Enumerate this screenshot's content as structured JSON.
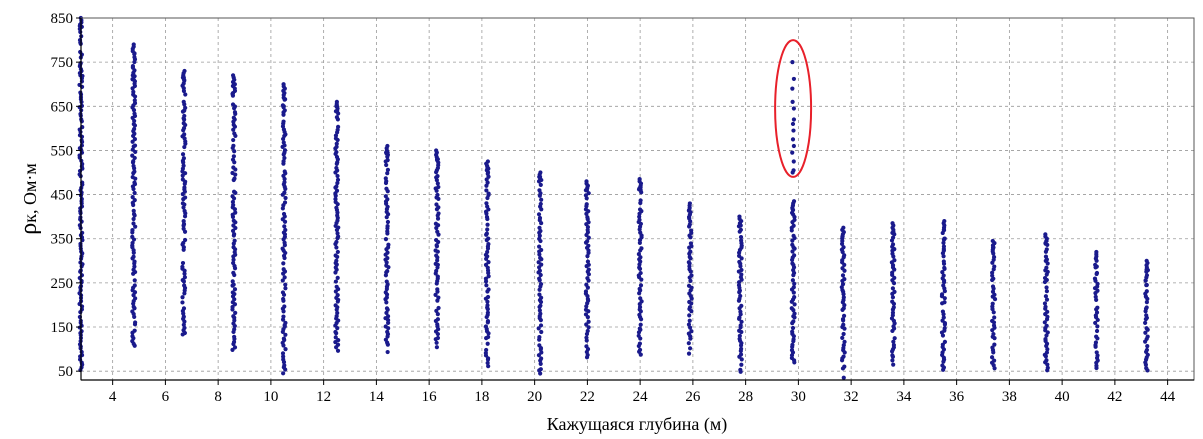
{
  "chart_data": {
    "type": "scatter",
    "title": "",
    "xlabel": "Кажущаяся глубина (м)",
    "ylabel": {
      "symbol": "ρ",
      "subscript": "к",
      "unit": ", Ом·м"
    },
    "xlim": [
      2.8,
      45
    ],
    "ylim": [
      30,
      850
    ],
    "xticks": [
      "4",
      "6",
      "8",
      "10",
      "12",
      "14",
      "16",
      "18",
      "20",
      "22",
      "24",
      "26",
      "28",
      "30",
      "32",
      "34",
      "36",
      "38",
      "40",
      "42",
      "44"
    ],
    "yticks": [
      "50",
      "150",
      "250",
      "350",
      "450",
      "550",
      "650",
      "750",
      "850"
    ],
    "grid": true,
    "marker_color": "#1a1a8c",
    "highlight_color": "#e8202a",
    "columns": [
      {
        "x": 2.8,
        "y_min": 50,
        "y_max": 850,
        "y_sparse_top": [
          800,
          745,
          720
        ]
      },
      {
        "x": 4.8,
        "y_min": 105,
        "y_max": 790,
        "y_sparse_top": [
          720,
          710
        ]
      },
      {
        "x": 6.7,
        "y_min": 130,
        "y_max": 730,
        "y_sparse_top": [
          715
        ]
      },
      {
        "x": 8.6,
        "y_min": 90,
        "y_max": 720,
        "y_sparse_top": [
          700,
          680
        ]
      },
      {
        "x": 10.5,
        "y_min": 45,
        "y_max": 700,
        "y_sparse_top": [
          665,
          650
        ]
      },
      {
        "x": 12.5,
        "y_min": 90,
        "y_max": 660,
        "y_sparse_top": [
          650
        ]
      },
      {
        "x": 14.4,
        "y_min": 90,
        "y_max": 560,
        "y_sparse_top": [
          545
        ]
      },
      {
        "x": 16.3,
        "y_min": 95,
        "y_max": 550,
        "y_sparse_top": [
          530
        ]
      },
      {
        "x": 18.2,
        "y_min": 55,
        "y_max": 525,
        "y_sparse_top": [
          510
        ]
      },
      {
        "x": 20.2,
        "y_min": 42,
        "y_max": 500,
        "y_sparse_top": [
          490
        ]
      },
      {
        "x": 22.0,
        "y_min": 80,
        "y_max": 480,
        "y_sparse_top": [
          470
        ]
      },
      {
        "x": 24.0,
        "y_min": 80,
        "y_max": 485,
        "y_sparse_top": [
          460
        ]
      },
      {
        "x": 25.9,
        "y_min": 80,
        "y_max": 430,
        "y_sparse_top": []
      },
      {
        "x": 27.8,
        "y_min": 45,
        "y_max": 400,
        "y_sparse_top": []
      },
      {
        "x": 29.8,
        "y_min": 60,
        "y_max": 435,
        "y_sparse_top": [
          750,
          712,
          690,
          660,
          645,
          620,
          610,
          595,
          575,
          560,
          545,
          525,
          505,
          500
        ]
      },
      {
        "x": 31.7,
        "y_min": 35,
        "y_max": 375,
        "y_sparse_top": [
          355
        ]
      },
      {
        "x": 33.6,
        "y_min": 55,
        "y_max": 385,
        "y_sparse_top": [
          360
        ]
      },
      {
        "x": 35.5,
        "y_min": 50,
        "y_max": 390,
        "y_sparse_top": [
          350
        ]
      },
      {
        "x": 37.4,
        "y_min": 55,
        "y_max": 345,
        "y_sparse_top": [
          330
        ]
      },
      {
        "x": 39.4,
        "y_min": 50,
        "y_max": 360,
        "y_sparse_top": [
          345
        ]
      },
      {
        "x": 41.3,
        "y_min": 55,
        "y_max": 320,
        "y_sparse_top": [
          285,
          270
        ]
      },
      {
        "x": 43.2,
        "y_min": 50,
        "y_max": 300,
        "y_sparse_top": [
          255,
          245
        ]
      }
    ],
    "highlight": {
      "shape": "ellipse",
      "x": 29.8,
      "y_range": [
        490,
        800
      ]
    }
  }
}
